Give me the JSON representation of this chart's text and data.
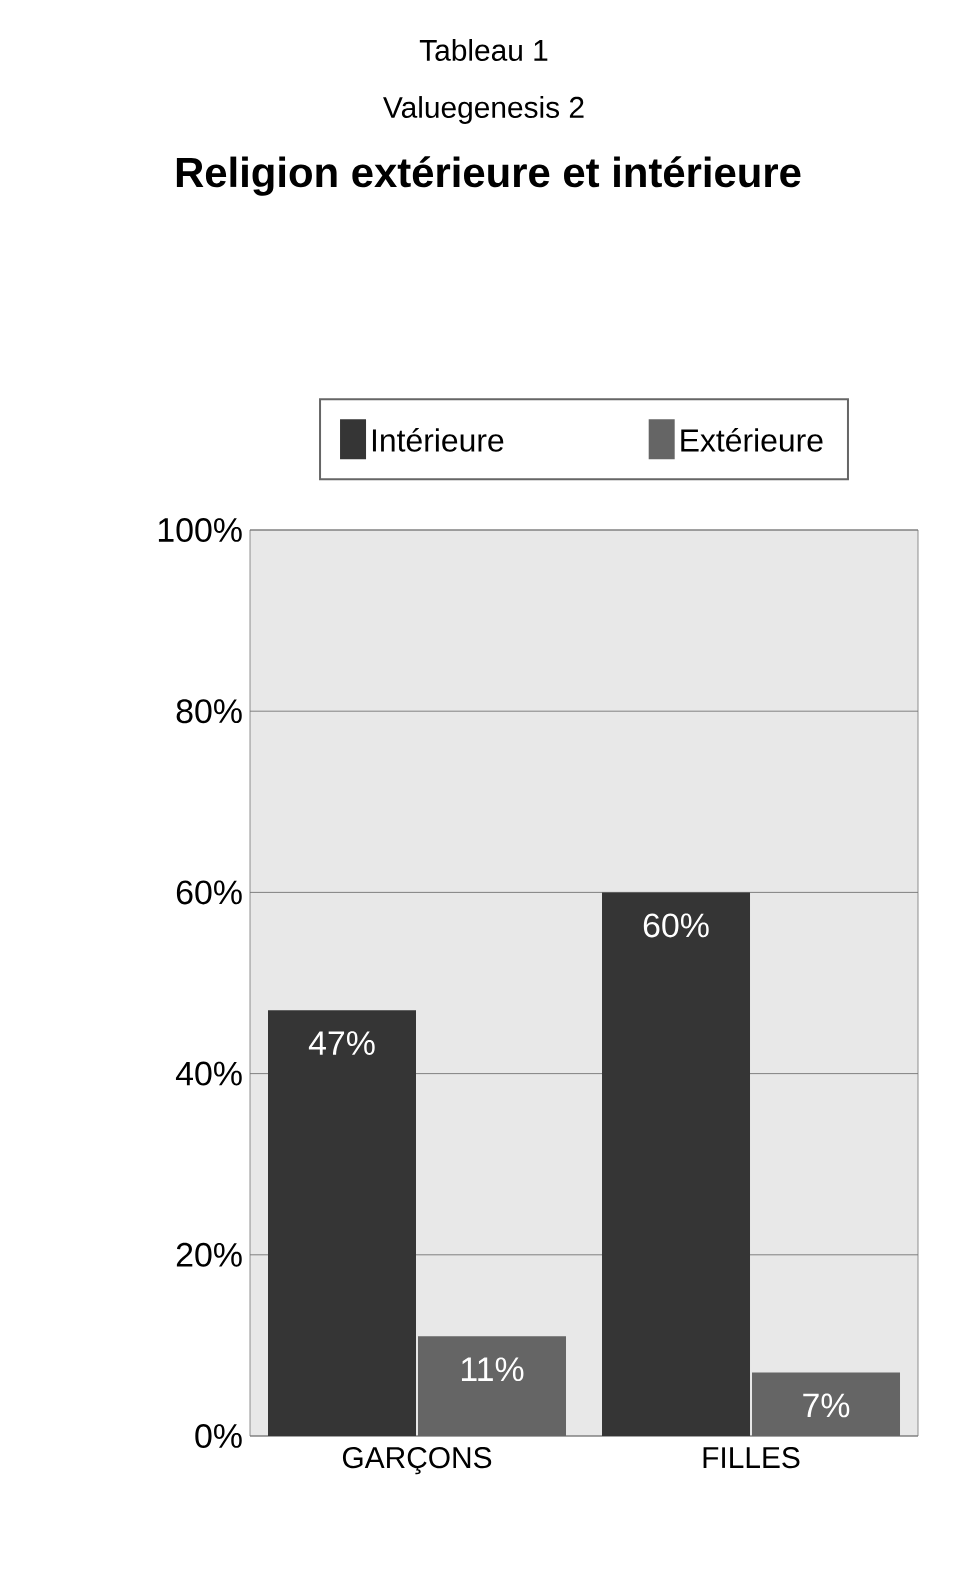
{
  "chart_data": {
    "type": "bar",
    "title": "Religion extérieure et intérieure",
    "annotations": [
      "Tableau 1",
      "Valuegenesis 2"
    ],
    "categories": [
      "GARÇONS",
      "FILLES"
    ],
    "series": [
      {
        "name": "Intérieure",
        "color": "#353535",
        "values": [
          47,
          60
        ],
        "value_labels": [
          "47%",
          "60%"
        ]
      },
      {
        "name": "Extérieure",
        "color": "#656565",
        "values": [
          11,
          7
        ],
        "value_labels": [
          "11%",
          "7%"
        ]
      }
    ],
    "ylim": [
      0,
      100
    ],
    "yticks": [
      {
        "value": 0,
        "label": "0%"
      },
      {
        "value": 20,
        "label": "20%"
      },
      {
        "value": 40,
        "label": "40%"
      },
      {
        "value": 60,
        "label": "60%"
      },
      {
        "value": 80,
        "label": "80%"
      },
      {
        "value": 100,
        "label": "100%"
      }
    ],
    "grid": "y",
    "legend": "top"
  }
}
